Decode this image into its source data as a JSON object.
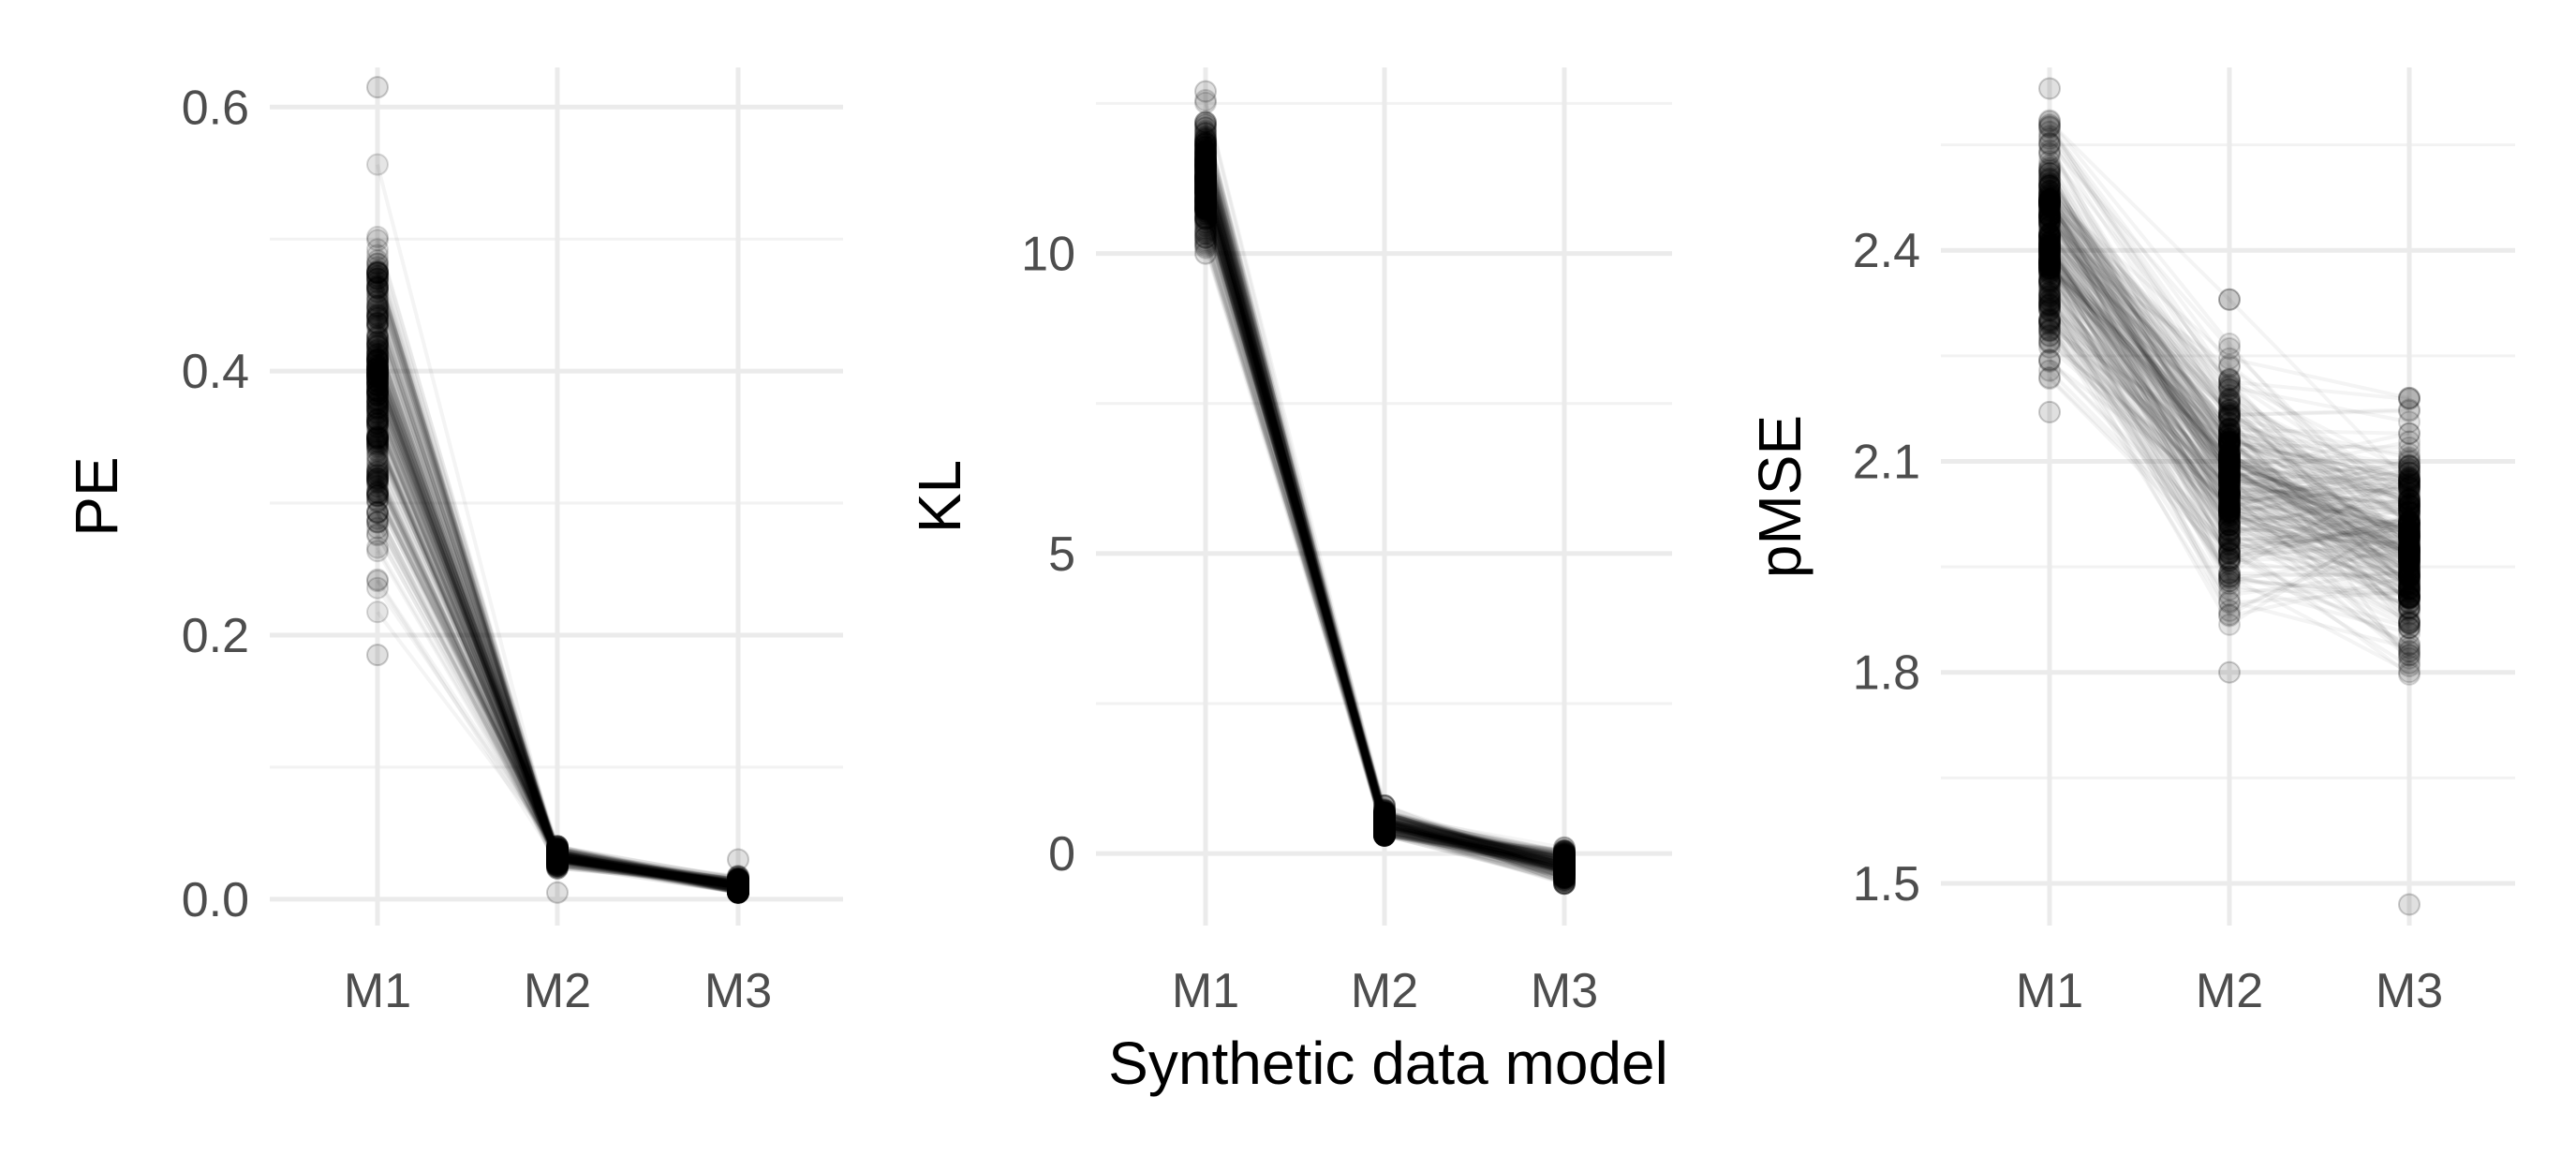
{
  "figure": {
    "xlabel": "Synthetic data model"
  },
  "chart_data": [
    {
      "type": "line",
      "ylabel": "PE",
      "categories": [
        "M1",
        "M2",
        "M3"
      ],
      "ylim": [
        -0.02,
        0.63
      ],
      "yticks": [
        0.0,
        0.2,
        0.4,
        0.6
      ],
      "ytick_labels": [
        "0.0",
        "0.2",
        "0.4",
        "0.6"
      ],
      "grid": true,
      "points_range": {
        "M1": [
          0.185,
          0.615
        ],
        "M2": [
          0.005,
          0.04
        ],
        "M3": [
          0.005,
          0.03
        ]
      },
      "typical_profile": [
        0.39,
        0.032,
        0.01
      ]
    },
    {
      "type": "line",
      "ylabel": "KL",
      "categories": [
        "M1",
        "M2",
        "M3"
      ],
      "ylim": [
        -1.2,
        13.1
      ],
      "yticks": [
        0,
        5,
        10
      ],
      "ytick_labels": [
        "0",
        "5",
        "10"
      ],
      "grid": true,
      "points_range": {
        "M1": [
          10.0,
          12.7
        ],
        "M2": [
          0.3,
          0.8
        ],
        "M3": [
          -0.5,
          0.1
        ]
      },
      "typical_profile": [
        11.2,
        0.5,
        -0.2
      ]
    },
    {
      "type": "line",
      "ylabel": "pMSE",
      "categories": [
        "M1",
        "M2",
        "M3"
      ],
      "ylim": [
        1.44,
        2.66
      ],
      "yticks": [
        1.5,
        1.8,
        2.1,
        2.4
      ],
      "ytick_labels": [
        "1.5",
        "1.8",
        "2.1",
        "2.4"
      ],
      "grid": true,
      "points_range": {
        "M1": [
          2.17,
          2.63
        ],
        "M2": [
          1.8,
          2.33
        ],
        "M3": [
          1.47,
          2.19
        ]
      },
      "typical_profile": [
        2.42,
        2.08,
        1.98
      ]
    }
  ]
}
